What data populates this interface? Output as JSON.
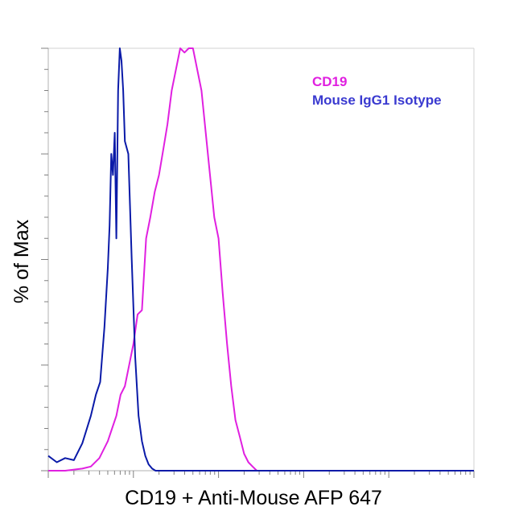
{
  "chart_data": {
    "type": "line",
    "title": "",
    "xlabel": "CD19 + Anti-Mouse AFP 647",
    "ylabel": "% of Max",
    "xscale": "log",
    "xlim": [
      1,
      100000
    ],
    "ylim": [
      0,
      100
    ],
    "x_tick_labels": [],
    "y_tick_labels": [],
    "grid": false,
    "legend": {
      "placement": "top-right",
      "entries": [
        {
          "label": "CD19",
          "color": "#e020e0"
        },
        {
          "label": "Mouse IgG1 Isotype",
          "color": "#3a3ad0"
        }
      ]
    },
    "series": [
      {
        "name": "Mouse IgG1 Isotype",
        "color": "#0a1aa8",
        "x": [
          1.0,
          1.26,
          1.58,
          2.0,
          2.51,
          3.16,
          3.63,
          4.07,
          4.57,
          5.0,
          5.25,
          5.5,
          5.75,
          6.03,
          6.31,
          6.61,
          6.92,
          7.24,
          7.59,
          7.94,
          8.71,
          9.55,
          10.5,
          11.5,
          12.6,
          13.8,
          15.1,
          16.6,
          18.2,
          20.0,
          25.1,
          31.6,
          100000
        ],
        "y": [
          3.5,
          2.0,
          3.0,
          2.5,
          6.5,
          13,
          18,
          21,
          34,
          48,
          58,
          75,
          70,
          80,
          55,
          90,
          100,
          97,
          90,
          78,
          75,
          50,
          27,
          13,
          7,
          3.5,
          1.5,
          0.5,
          0,
          0,
          0,
          0,
          0
        ]
      },
      {
        "name": "CD19",
        "color": "#e020e0",
        "x": [
          1.0,
          1.58,
          2.51,
          3.16,
          3.98,
          5.01,
          5.62,
          6.31,
          7.08,
          7.94,
          8.91,
          10.0,
          11.2,
          12.6,
          14.1,
          15.8,
          17.8,
          20.0,
          22.4,
          25.1,
          28.2,
          31.6,
          35.5,
          39.8,
          44.7,
          50.1,
          56.2,
          63.1,
          70.8,
          79.4,
          89.1,
          100,
          112,
          126,
          141,
          158,
          178,
          200,
          224,
          251,
          282,
          316,
          355,
          398,
          100000
        ],
        "y": [
          0,
          0,
          0.5,
          1,
          3,
          7,
          10,
          13,
          18,
          20,
          25,
          30,
          37,
          38,
          55,
          60,
          66,
          70,
          76,
          82,
          90,
          95,
          100,
          99,
          100,
          100,
          95,
          90,
          80,
          70,
          60,
          55,
          42,
          30,
          20,
          12,
          8,
          4,
          2,
          1,
          0,
          0,
          0,
          0,
          0
        ]
      }
    ]
  }
}
